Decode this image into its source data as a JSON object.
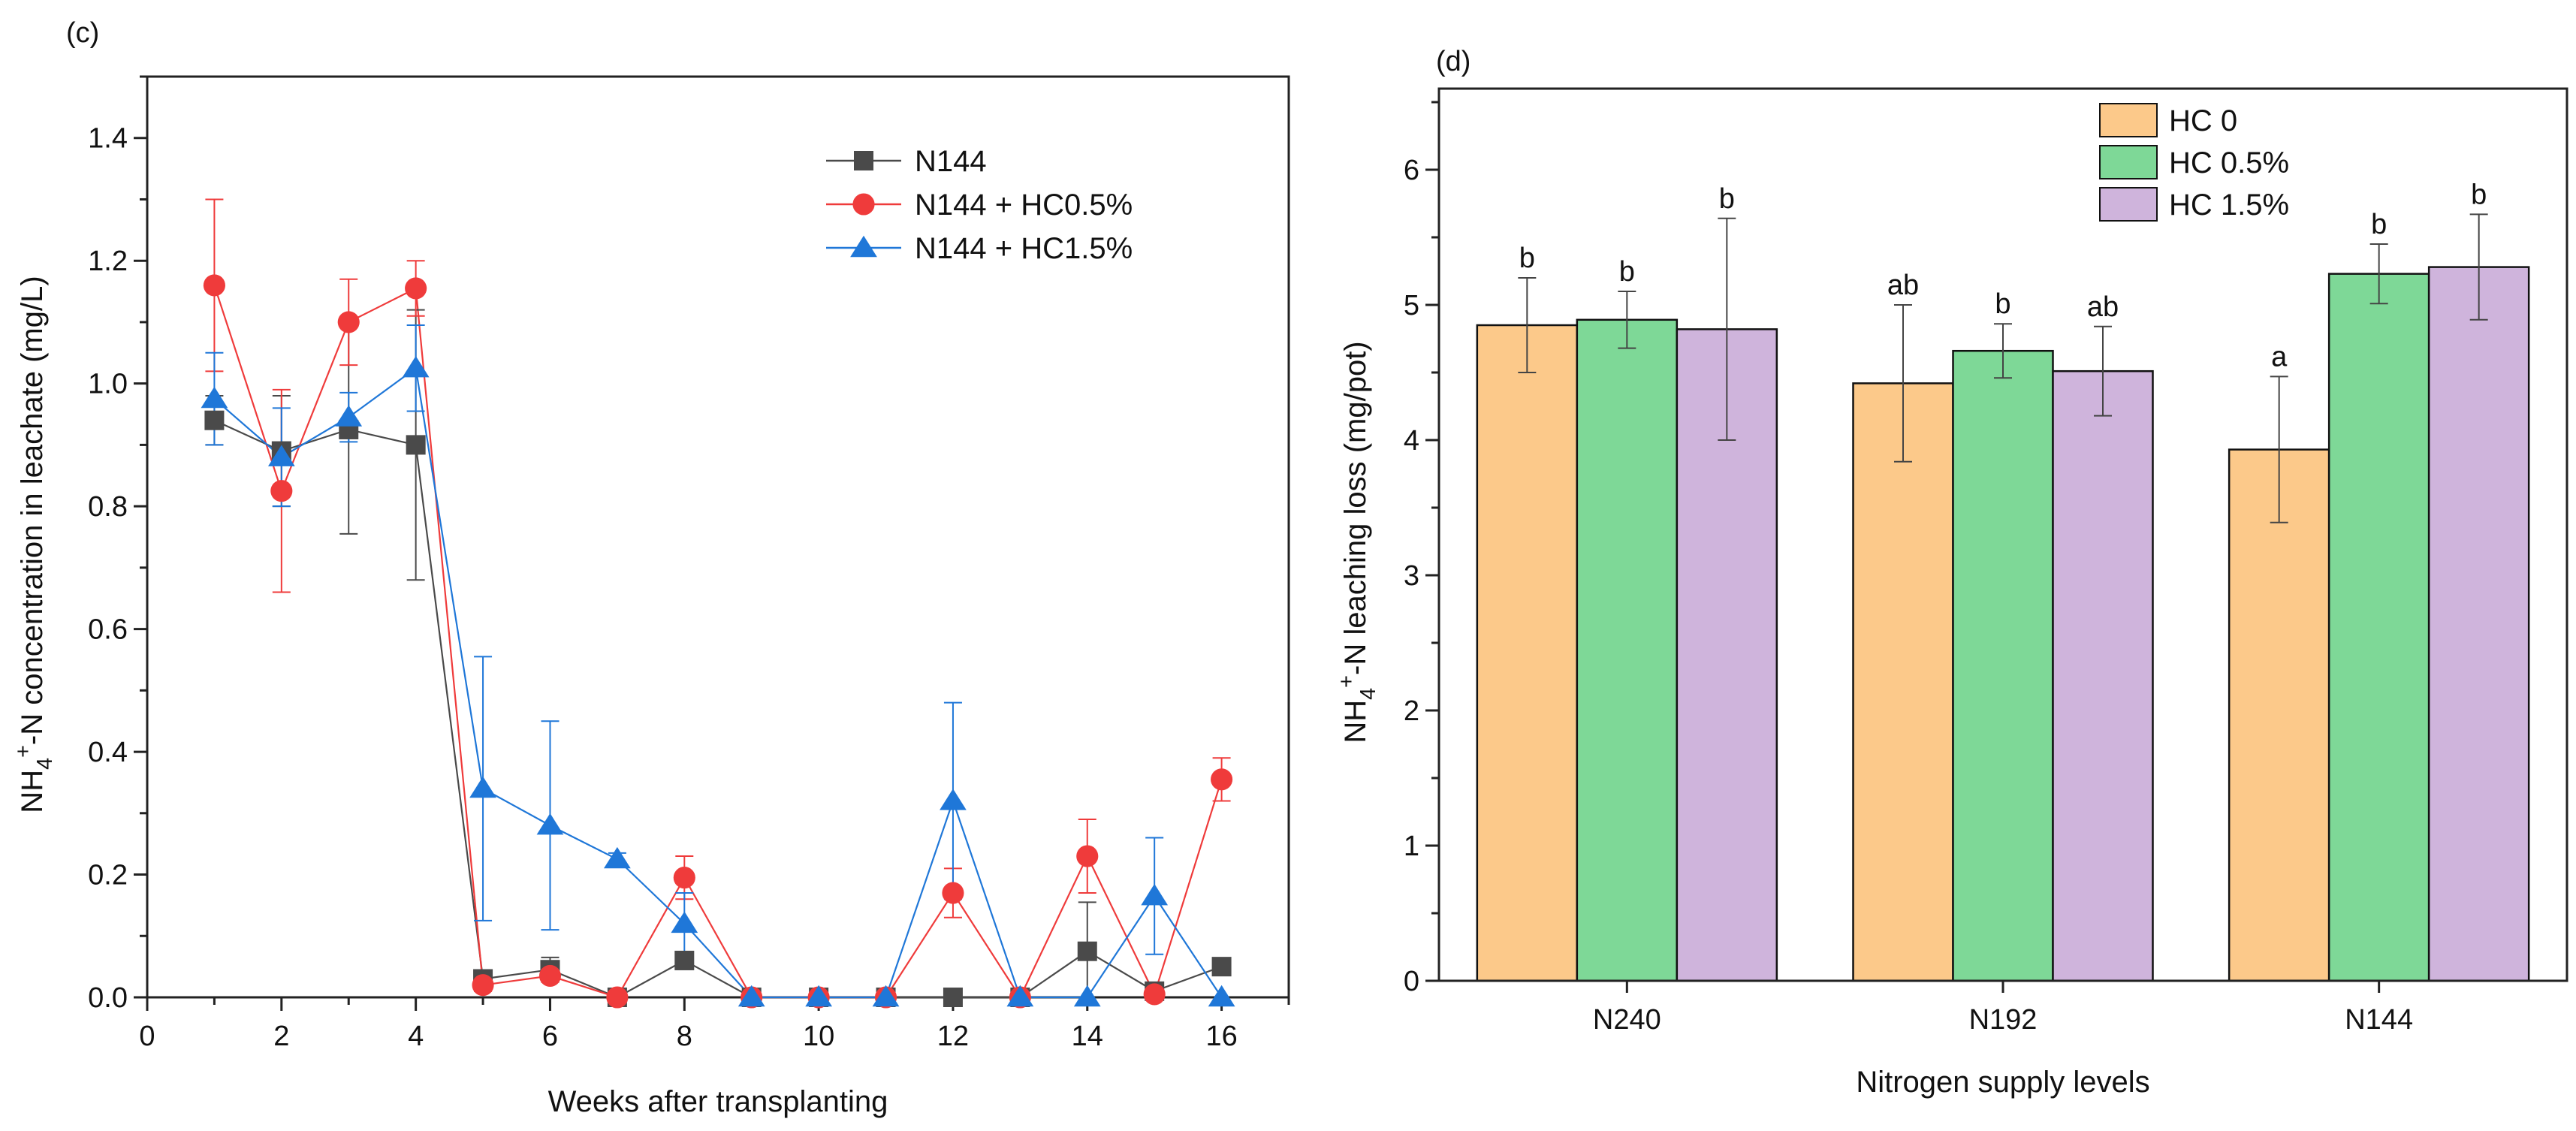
{
  "panels": {
    "c": {
      "label": "(c)"
    },
    "d": {
      "label": "(d)"
    }
  },
  "chart_data": [
    {
      "type": "line",
      "panel": "c",
      "xlabel": "Weeks after transplanting",
      "ylabel_parts": [
        "NH",
        "4",
        "+",
        "-N concentration in leachate (mg/L)"
      ],
      "xlim": [
        0,
        17
      ],
      "ylim": [
        0,
        1.5
      ],
      "xticks": [
        0,
        2,
        4,
        6,
        8,
        10,
        12,
        14,
        16
      ],
      "xtick_labels": [
        "0",
        "2",
        "4",
        "6",
        "8",
        "10",
        "12",
        "14",
        "16"
      ],
      "yticks": [
        0,
        0.2,
        0.4,
        0.6,
        0.8,
        1.0,
        1.2,
        1.4
      ],
      "ytick_labels": [
        "0.0",
        "0.2",
        "0.4",
        "0.6",
        "0.8",
        "1.0",
        "1.2",
        "1.4"
      ],
      "grid": false,
      "legend_position": "top-right",
      "x": [
        1,
        2,
        3,
        4,
        5,
        6,
        7,
        8,
        9,
        10,
        11,
        12,
        13,
        14,
        15,
        16
      ],
      "series": [
        {
          "name": "N144",
          "color": "#4a4a4a",
          "marker": "square",
          "values": [
            0.94,
            0.89,
            0.925,
            0.9,
            0.03,
            0.045,
            0.0,
            0.06,
            0.0,
            0.0,
            0.0,
            0.0,
            0.0,
            0.075,
            0.01,
            0.05
          ],
          "errors": [
            0.04,
            0.09,
            0.17,
            0.22,
            0.01,
            0.02,
            0.0,
            0.01,
            0.0,
            0.0,
            0.0,
            0.0,
            0.0,
            0.08,
            0.01,
            0.0
          ]
        },
        {
          "name": "N144 + HC0.5%",
          "color": "#ef3b3b",
          "marker": "circle",
          "values": [
            1.16,
            0.825,
            1.1,
            1.155,
            0.02,
            0.035,
            0.0,
            0.195,
            0.0,
            0.0,
            0.0,
            0.17,
            0.0,
            0.23,
            0.005,
            0.355
          ],
          "errors": [
            0.14,
            0.165,
            0.07,
            0.045,
            0.01,
            0.01,
            0.0,
            0.035,
            0.0,
            0.0,
            0.0,
            0.04,
            0.0,
            0.06,
            0.005,
            0.035
          ]
        },
        {
          "name": "N144 + HC1.5%",
          "color": "#1f77d8",
          "marker": "triangle",
          "values": [
            0.975,
            0.88,
            0.945,
            1.025,
            0.34,
            0.28,
            0.225,
            0.12,
            0.0,
            0.0,
            0.0,
            0.32,
            0.0,
            0.0,
            0.165,
            0.0
          ],
          "errors": [
            0.075,
            0.08,
            0.04,
            0.07,
            0.215,
            0.17,
            0.01,
            0.05,
            0.0,
            0.0,
            0.0,
            0.16,
            0.0,
            0.0,
            0.095,
            0.0
          ]
        }
      ]
    },
    {
      "type": "bar",
      "panel": "d",
      "xlabel": "Nitrogen supply levels",
      "ylabel_parts": [
        "NH",
        "4",
        "+",
        "-N leaching loss (mg/pot)"
      ],
      "categories": [
        "N240",
        "N192",
        "N144"
      ],
      "ylim": [
        0,
        6.6
      ],
      "yticks": [
        0,
        1,
        2,
        3,
        4,
        5,
        6
      ],
      "ytick_labels": [
        "0",
        "1",
        "2",
        "3",
        "4",
        "5",
        "6"
      ],
      "grid": false,
      "legend_position": "top-center",
      "series": [
        {
          "name": "HC 0",
          "color": "#fcc98a",
          "values": [
            4.85,
            4.42,
            3.93
          ],
          "errors": [
            0.35,
            0.58,
            0.54
          ],
          "letters": [
            "b",
            "ab",
            "a"
          ]
        },
        {
          "name": "HC 0.5%",
          "color": "#7ed897",
          "values": [
            4.89,
            4.66,
            5.23
          ],
          "errors": [
            0.21,
            0.2,
            0.22
          ],
          "letters": [
            "b",
            "b",
            "b"
          ]
        },
        {
          "name": "HC 1.5%",
          "color": "#cfb4dc",
          "values": [
            4.82,
            4.51,
            5.28
          ],
          "errors": [
            0.82,
            0.33,
            0.39
          ],
          "letters": [
            "b",
            "ab",
            "b"
          ]
        }
      ]
    }
  ]
}
